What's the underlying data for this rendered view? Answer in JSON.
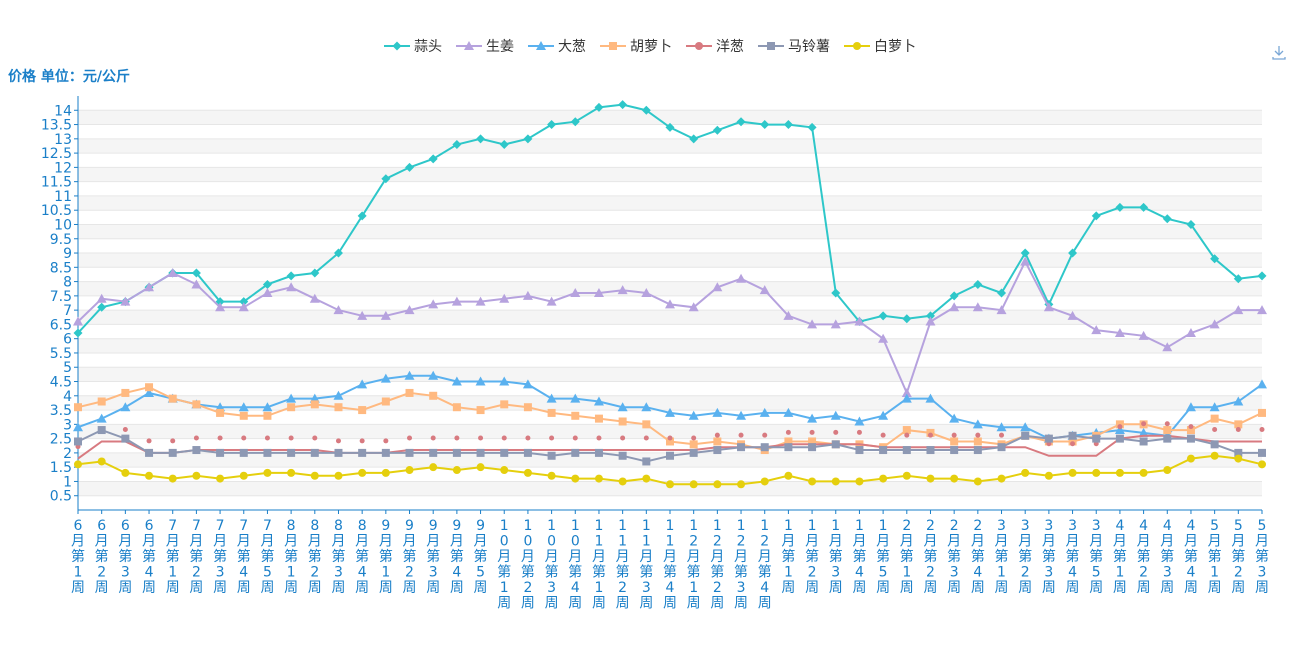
{
  "ylabel": "价格 单位：元/公斤",
  "download_icon": "download-icon",
  "chart_data": {
    "type": "line",
    "ylabel": "价格 单位：元/公斤",
    "ylim": [
      0,
      14.5
    ],
    "yticks": [
      0.5,
      1,
      1.5,
      2,
      2.5,
      3,
      3.5,
      4,
      4.5,
      5,
      5.5,
      6,
      6.5,
      7,
      7.5,
      8,
      8.5,
      9,
      9.5,
      10,
      10.5,
      11,
      11.5,
      12,
      12.5,
      13,
      13.5,
      14
    ],
    "grid": true,
    "legend_position": "top-center",
    "categories": [
      "6月第1周",
      "6月第2周",
      "6月第3周",
      "6月第4周",
      "7月第1周",
      "7月第2周",
      "7月第3周",
      "7月第4周",
      "7月第5周",
      "8月第1周",
      "8月第2周",
      "8月第3周",
      "8月第4周",
      "9月第1周",
      "9月第2周",
      "9月第3周",
      "9月第4周",
      "9月第5周",
      "10月第1周",
      "10月第2周",
      "10月第3周",
      "10月第4周",
      "11月第1周",
      "11月第2周",
      "11月第3周",
      "11月第4周",
      "12月第1周",
      "12月第2周",
      "12月第3周",
      "12月第4周",
      "1月第1周",
      "1月第2周",
      "1月第3周",
      "1月第4周",
      "1月第5周",
      "2月第1周",
      "2月第2周",
      "2月第3周",
      "2月第4周",
      "3月第1周",
      "3月第2周",
      "3月第3周",
      "3月第4周",
      "3月第5周",
      "4月第1周",
      "4月第2周",
      "4月第3周",
      "4月第4周",
      "5月第1周",
      "5月第2周",
      "5月第3周"
    ],
    "series": [
      {
        "name": "蒜头",
        "color": "#2ec7c9",
        "marker": "diamond",
        "values": [
          6.2,
          7.1,
          7.3,
          7.8,
          8.3,
          8.3,
          7.3,
          7.3,
          7.9,
          8.2,
          8.3,
          9.0,
          10.3,
          11.6,
          12.0,
          12.3,
          12.8,
          13.0,
          12.8,
          13.0,
          13.5,
          13.6,
          14.1,
          14.2,
          14.0,
          13.4,
          13.0,
          13.3,
          13.6,
          13.5,
          13.5,
          13.4,
          7.6,
          6.6,
          6.8,
          6.7,
          6.8,
          7.5,
          7.9,
          7.6,
          9.0,
          7.2,
          9.0,
          10.3,
          10.6,
          10.6,
          10.2,
          10.0,
          8.8,
          8.1,
          8.2
        ]
      },
      {
        "name": "生姜",
        "color": "#b6a2de",
        "marker": "triangle",
        "values": [
          6.6,
          7.4,
          7.3,
          7.8,
          8.3,
          7.9,
          7.1,
          7.1,
          7.6,
          7.8,
          7.4,
          7.0,
          6.8,
          6.8,
          7.0,
          7.2,
          7.3,
          7.3,
          7.4,
          7.5,
          7.3,
          7.6,
          7.6,
          7.7,
          7.6,
          7.2,
          7.1,
          7.8,
          8.1,
          7.7,
          6.8,
          6.5,
          6.5,
          6.6,
          6.0,
          4.1,
          6.6,
          7.1,
          7.1,
          7.0,
          8.7,
          7.1,
          6.8,
          6.3,
          6.2,
          6.1,
          5.7,
          6.2,
          6.5,
          7.0,
          7.0
        ]
      },
      {
        "name": "大葱",
        "color": "#5ab1ef",
        "marker": "triangle",
        "values": [
          2.9,
          3.2,
          3.6,
          4.1,
          3.9,
          3.7,
          3.6,
          3.6,
          3.6,
          3.9,
          3.9,
          4.0,
          4.4,
          4.6,
          4.7,
          4.7,
          4.5,
          4.5,
          4.5,
          4.4,
          3.9,
          3.9,
          3.8,
          3.6,
          3.6,
          3.4,
          3.3,
          3.4,
          3.3,
          3.4,
          3.4,
          3.2,
          3.3,
          3.1,
          3.3,
          3.9,
          3.9,
          3.2,
          3.0,
          2.9,
          2.9,
          2.5,
          2.6,
          2.7,
          2.8,
          2.7,
          2.6,
          3.6,
          3.6,
          3.8,
          4.4
        ]
      },
      {
        "name": "胡萝卜",
        "color": "#ffb980",
        "marker": "square",
        "values": [
          3.6,
          3.8,
          4.1,
          4.3,
          3.9,
          3.7,
          3.4,
          3.3,
          3.3,
          3.6,
          3.7,
          3.6,
          3.5,
          3.8,
          4.1,
          4.0,
          3.6,
          3.5,
          3.7,
          3.6,
          3.4,
          3.3,
          3.2,
          3.1,
          3.0,
          2.4,
          2.3,
          2.4,
          2.3,
          2.1,
          2.4,
          2.4,
          2.3,
          2.3,
          2.2,
          2.8,
          2.7,
          2.4,
          2.4,
          2.3,
          2.6,
          2.4,
          2.4,
          2.6,
          3.0,
          3.0,
          2.8,
          2.8,
          3.2,
          3.0,
          3.4
        ]
      },
      {
        "name": "洋葱",
        "color": "#d87a80",
        "marker": "pin",
        "values": [
          1.8,
          2.4,
          2.4,
          2.0,
          2.0,
          2.1,
          2.1,
          2.1,
          2.1,
          2.1,
          2.1,
          2.0,
          2.0,
          2.0,
          2.1,
          2.1,
          2.1,
          2.1,
          2.1,
          2.1,
          2.1,
          2.1,
          2.1,
          2.1,
          2.1,
          2.1,
          2.1,
          2.2,
          2.2,
          2.2,
          2.3,
          2.3,
          2.3,
          2.3,
          2.2,
          2.2,
          2.2,
          2.2,
          2.2,
          2.2,
          2.2,
          1.9,
          1.9,
          1.9,
          2.5,
          2.6,
          2.6,
          2.5,
          2.4,
          2.4,
          2.4
        ]
      },
      {
        "name": "马铃薯",
        "color": "#8d98b3",
        "marker": "square",
        "values": [
          2.4,
          2.8,
          2.5,
          2.0,
          2.0,
          2.1,
          2.0,
          2.0,
          2.0,
          2.0,
          2.0,
          2.0,
          2.0,
          2.0,
          2.0,
          2.0,
          2.0,
          2.0,
          2.0,
          2.0,
          1.9,
          2.0,
          2.0,
          1.9,
          1.7,
          1.9,
          2.0,
          2.1,
          2.2,
          2.2,
          2.2,
          2.2,
          2.3,
          2.1,
          2.1,
          2.1,
          2.1,
          2.1,
          2.1,
          2.2,
          2.6,
          2.5,
          2.6,
          2.5,
          2.5,
          2.4,
          2.5,
          2.5,
          2.3,
          2.0,
          2.0
        ]
      },
      {
        "name": "白萝卜",
        "color": "#e5cf0d",
        "marker": "circle",
        "values": [
          1.6,
          1.7,
          1.3,
          1.2,
          1.1,
          1.2,
          1.1,
          1.2,
          1.3,
          1.3,
          1.2,
          1.2,
          1.3,
          1.3,
          1.4,
          1.5,
          1.4,
          1.5,
          1.4,
          1.3,
          1.2,
          1.1,
          1.1,
          1.0,
          1.1,
          0.9,
          0.9,
          0.9,
          0.9,
          1.0,
          1.2,
          1.0,
          1.0,
          1.0,
          1.1,
          1.2,
          1.1,
          1.1,
          1.0,
          1.1,
          1.3,
          1.2,
          1.3,
          1.3,
          1.3,
          1.3,
          1.4,
          1.8,
          1.9,
          1.8,
          1.6
        ]
      }
    ]
  }
}
